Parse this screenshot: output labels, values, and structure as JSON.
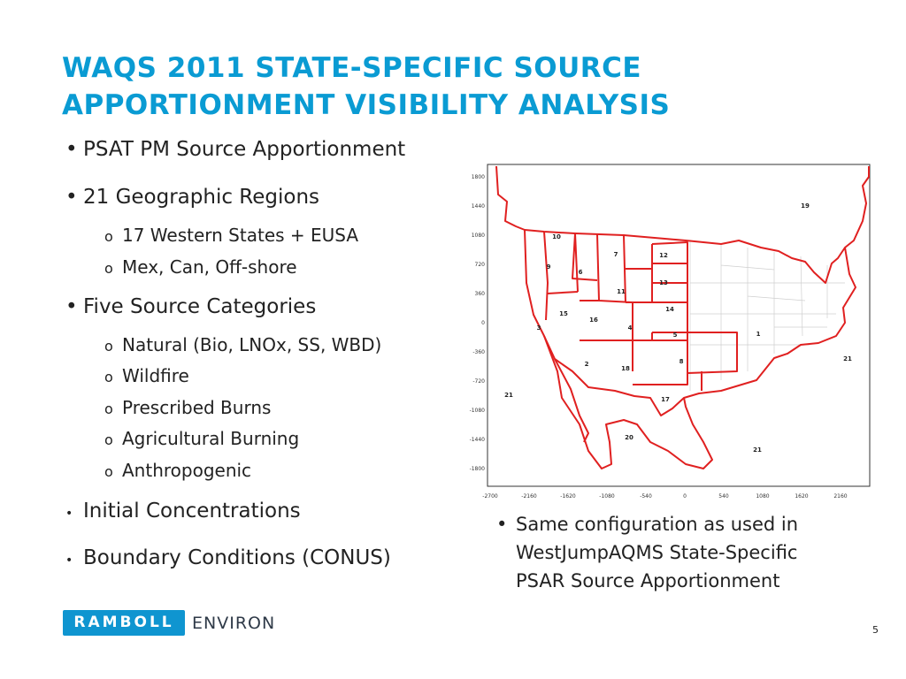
{
  "title": {
    "line1": "WAQS 2011 STATE-SPECIFIC SOURCE",
    "line2": "APPORTIONMENT VISIBILITY ANALYSIS"
  },
  "bullets": [
    {
      "text": "PSAT PM Source Apportionment",
      "sub": []
    },
    {
      "text": "21 Geographic Regions",
      "sub": [
        "17 Western States + EUSA",
        "Mex, Can, Off-shore"
      ]
    },
    {
      "text": "Five Source Categories",
      "sub": [
        "Natural (Bio, LNOx, SS, WBD)",
        "Wildfire",
        "Prescribed Burns",
        "Agricultural Burning",
        "Anthropogenic"
      ]
    },
    {
      "text": "Initial Concentrations",
      "sub": []
    },
    {
      "text": "Boundary Conditions (CONUS)",
      "sub": []
    }
  ],
  "bullet_char": "•",
  "sub_char": "o",
  "map": {
    "y_ticks": [
      "1800",
      "1440",
      "1080",
      "720",
      "360",
      "0",
      "-360",
      "-720",
      "-1080",
      "-1440",
      "-1800"
    ],
    "x_ticks": [
      "-2700",
      "-2160",
      "-1620",
      "-1080",
      "-540",
      "0",
      "540",
      "1080",
      "1620",
      "2160"
    ],
    "region_labels": [
      "19",
      "10",
      "7",
      "12",
      "9",
      "6",
      "13",
      "11",
      "14",
      "15",
      "16",
      "3",
      "4",
      "5",
      "1",
      "2",
      "18",
      "8",
      "21",
      "21",
      "17",
      "20",
      "21"
    ],
    "boundary_color": "#e02020"
  },
  "note": {
    "line1": "Same configuration as used in",
    "line2": "WestJumpAQMS State-Specific",
    "line3": "PSAR Source Apportionment"
  },
  "logo": {
    "mark": "RAMBOLL",
    "text": "ENVIRON"
  },
  "page_number": "5"
}
